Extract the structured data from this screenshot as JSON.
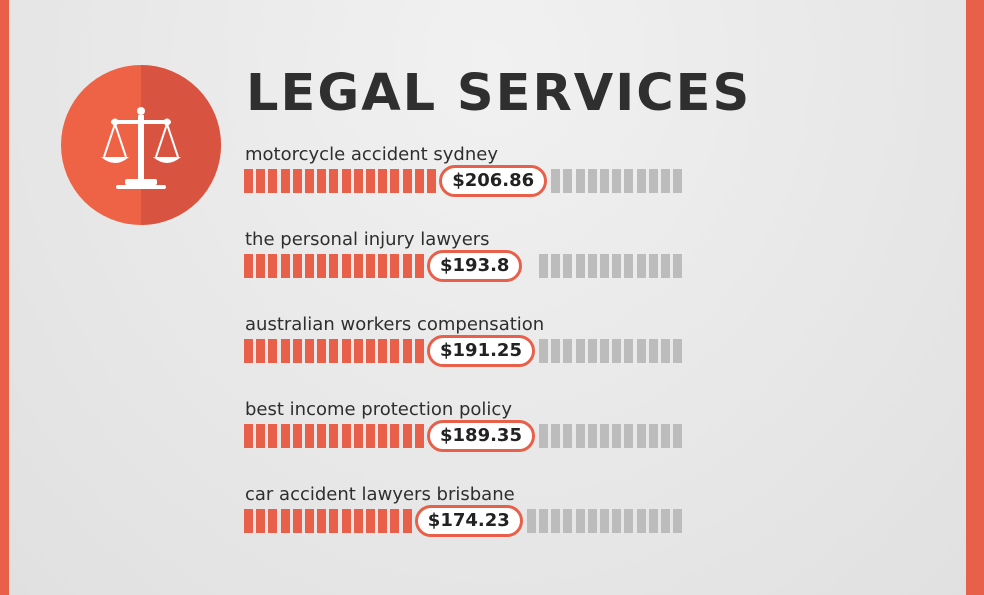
{
  "header": {
    "title": "LEGAL SERVICES"
  },
  "icon": "scales-of-justice-icon",
  "colors": {
    "accent": "#e8604a",
    "inactive": "#bcbcbc",
    "text": "#2f2f2f"
  },
  "chart_data": {
    "type": "bar",
    "title": "LEGAL SERVICES",
    "categories": [
      "motorcycle accident sydney",
      "the personal injury lawyers",
      "australian workers compensation",
      "best income protection policy",
      "car accident lawyers brisbane"
    ],
    "values": [
      206.86,
      193.8,
      191.25,
      189.35,
      174.23
    ],
    "value_labels": [
      "$206.86",
      "$193.8",
      "$191.25",
      "$189.35",
      "$174.23"
    ],
    "filled_segments": [
      16,
      15,
      15,
      15,
      14
    ],
    "total_segments": 27
  }
}
